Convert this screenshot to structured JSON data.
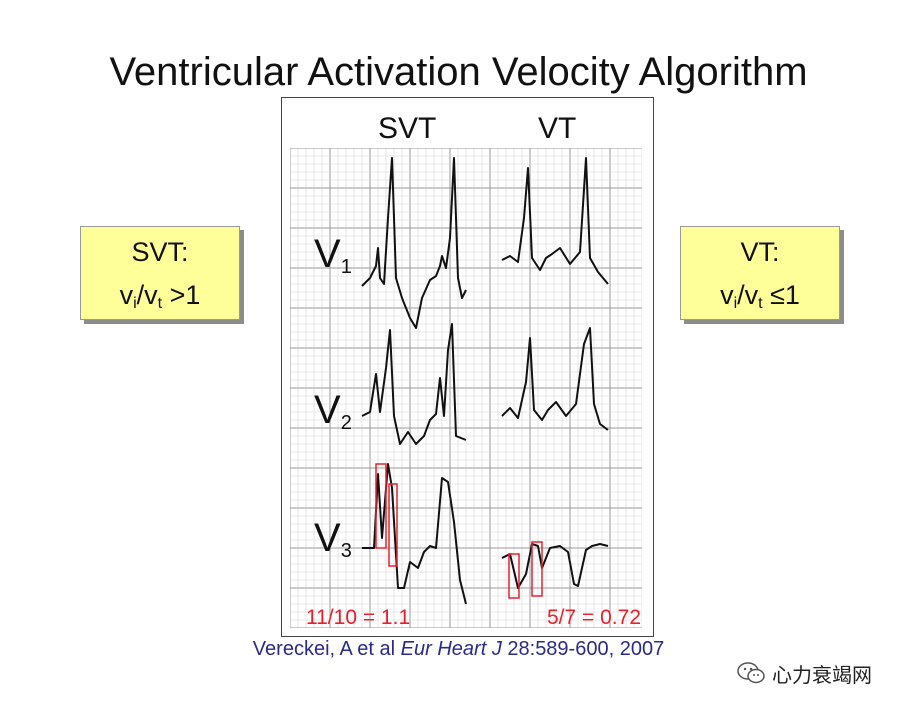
{
  "title": "Ventricular Activation Velocity Algorithm",
  "left_box": {
    "label": "SVT:",
    "formula_v1": "v",
    "sub_i": "i",
    "slash": "/v",
    "sub_t": "t",
    "tail": " >1"
  },
  "right_box": {
    "label": "VT:",
    "formula_v1": "v",
    "sub_i": "i",
    "slash": "/v",
    "sub_t": "t",
    "tail": " ≤1"
  },
  "columns": {
    "svt": "SVT",
    "vt": "VT"
  },
  "leads": [
    {
      "letter": "V",
      "num": "1"
    },
    {
      "letter": "V",
      "num": "2"
    },
    {
      "letter": "V",
      "num": "3"
    }
  ],
  "ratios": {
    "svt": "11/10 = 1.1",
    "vt": "5/7 = 0.72"
  },
  "citation": {
    "authors": "Vereckei, A et al ",
    "journal": "Eur Heart J",
    "ref": " 28:589-600, 2007"
  },
  "watermark": {
    "text": "心力衰竭网",
    "icon": "wechat-icon"
  },
  "colors": {
    "box_fill": "#ffff99",
    "ratio_red": "#e8202c",
    "citation_blue": "#2a2a8c",
    "grid": "#bdbdbd"
  }
}
